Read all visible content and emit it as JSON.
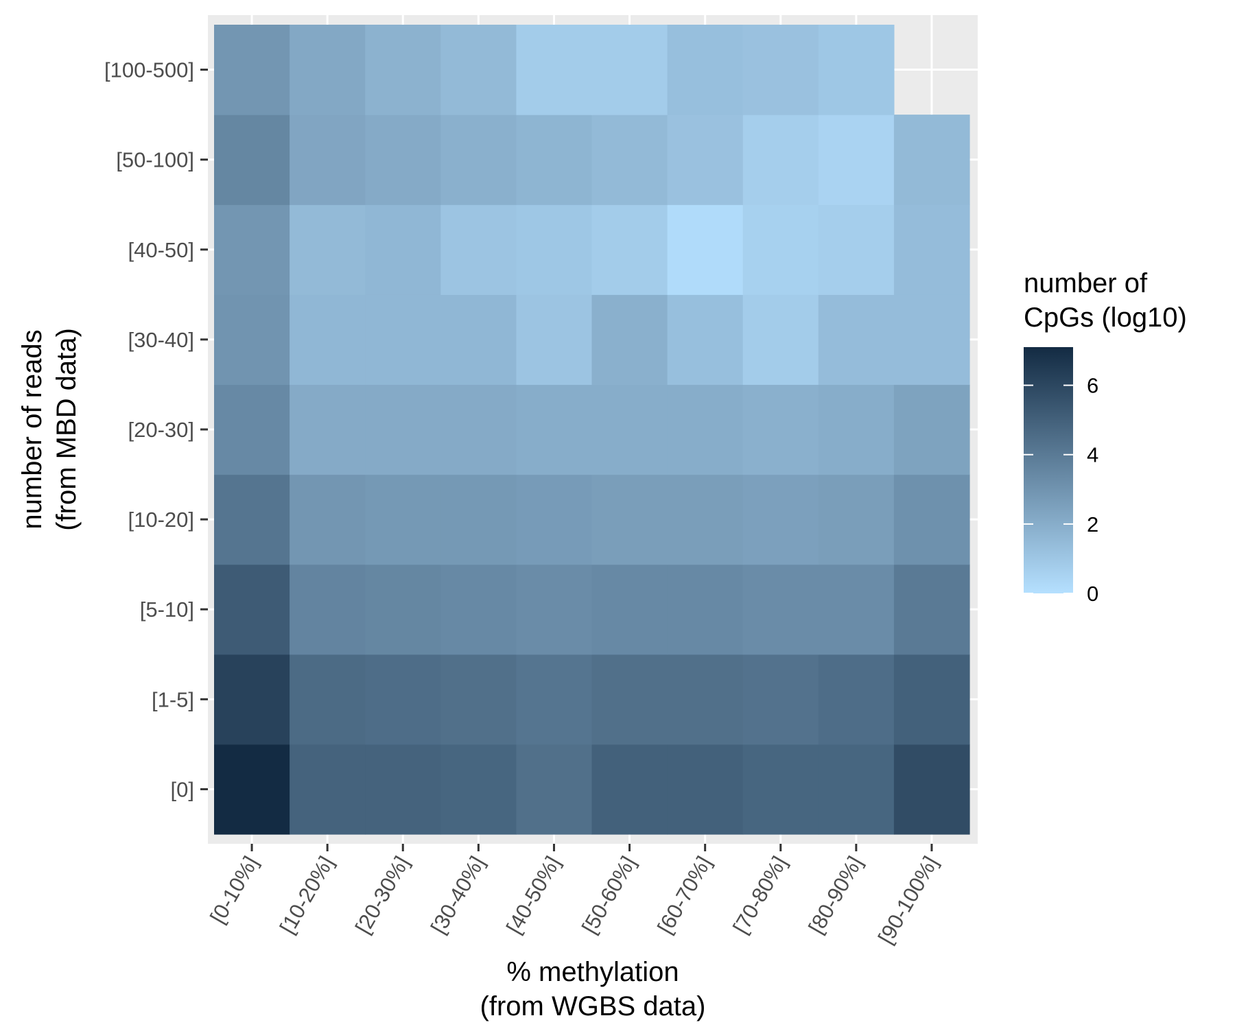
{
  "chart_data": {
    "type": "heatmap",
    "x_categories": [
      "[0-10%]",
      "[10-20%]",
      "[20-30%]",
      "[30-40%]",
      "[40-50%]",
      "[50-60%]",
      "[60-70%]",
      "[70-80%]",
      "[80-90%]",
      "[90-100%]"
    ],
    "y_categories": [
      "[0]",
      "[1-5]",
      "[5-10]",
      "[10-20]",
      "[20-30]",
      "[30-40]",
      "[40-50]",
      "[50-100]",
      "[100-500]"
    ],
    "xlabel": [
      "% methylation",
      "(from WGBS data)"
    ],
    "ylabel": [
      "number of reads",
      "(from MBD data)"
    ],
    "values": [
      [
        7.1,
        4.9,
        4.9,
        4.8,
        4.4,
        5.0,
        5.0,
        4.8,
        4.8,
        5.8
      ],
      [
        6.2,
        4.6,
        4.5,
        4.4,
        4.2,
        4.4,
        4.4,
        4.3,
        4.5,
        5.0
      ],
      [
        5.2,
        3.6,
        3.5,
        3.4,
        3.3,
        3.4,
        3.4,
        3.3,
        3.3,
        4.0
      ],
      [
        4.2,
        2.9,
        2.8,
        2.8,
        2.7,
        2.6,
        2.6,
        2.5,
        2.6,
        3.1
      ],
      [
        3.4,
        2.1,
        2.1,
        2.1,
        2.0,
        2.0,
        2.0,
        1.9,
        2.0,
        2.4
      ],
      [
        3.0,
        1.6,
        1.6,
        1.6,
        1.1,
        1.9,
        1.3,
        0.8,
        1.4,
        1.4
      ],
      [
        2.9,
        1.5,
        1.6,
        1.1,
        1.0,
        0.8,
        0.2,
        0.6,
        0.7,
        1.4
      ],
      [
        3.5,
        2.3,
        2.1,
        1.9,
        1.7,
        1.5,
        1.2,
        0.7,
        0.5,
        1.5
      ],
      [
        2.9,
        2.2,
        1.8,
        1.5,
        0.8,
        0.8,
        1.3,
        1.2,
        1.0,
        null
      ]
    ],
    "colorbar": {
      "title": [
        "number of",
        "CpGs (log10)"
      ],
      "min": 0,
      "max": 7.1,
      "ticks": [
        0,
        2,
        4,
        6
      ],
      "low_color": "#b5e0ff",
      "high_color": "#132b43"
    },
    "panel_background": "#ebebeb",
    "grid": true
  }
}
